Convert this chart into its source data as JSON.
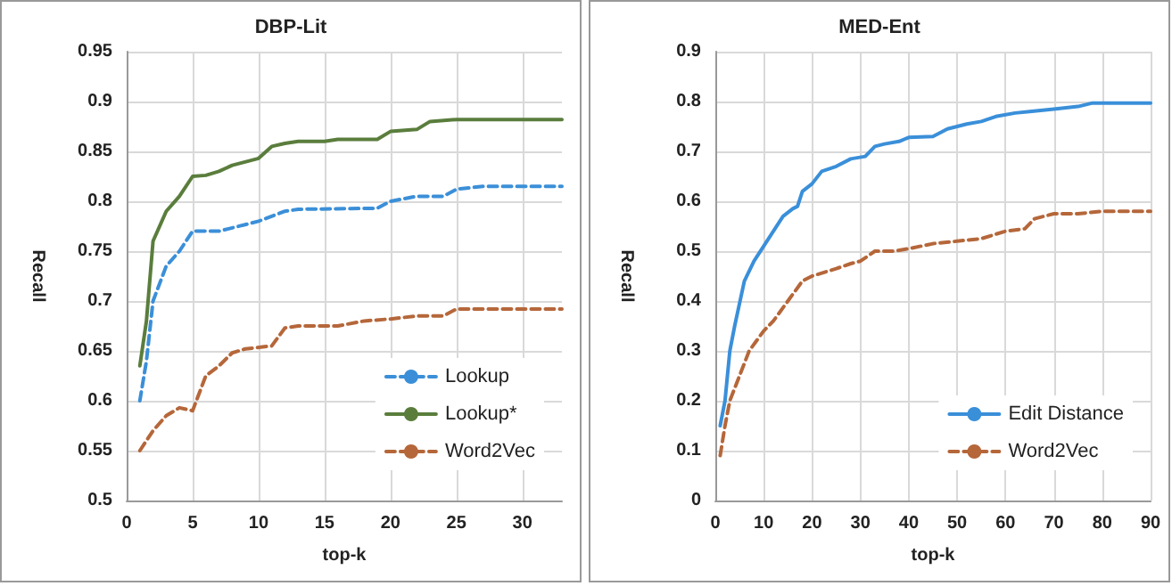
{
  "chart_data": [
    {
      "type": "line",
      "title": "DBP-Lit",
      "xlabel": "top-k",
      "ylabel": "Recall",
      "xlim": [
        0,
        33
      ],
      "xticks": [
        0,
        5,
        10,
        15,
        20,
        25,
        30
      ],
      "ylim": [
        0.5,
        0.95
      ],
      "yticks": [
        0.5,
        0.55,
        0.6,
        0.65,
        0.7,
        0.75,
        0.8,
        0.85,
        0.9,
        0.95
      ],
      "grid": true,
      "legend": "bottom right",
      "marker": "none",
      "series": [
        {
          "name": "Lookup",
          "color": "#3b8fd8",
          "line_style": "dashed",
          "x": [
            1,
            1.5,
            2,
            3,
            4,
            5,
            7,
            10,
            12,
            13,
            19,
            20,
            22,
            24,
            25,
            27,
            33
          ],
          "values": [
            0.6,
            0.64,
            0.7,
            0.735,
            0.75,
            0.77,
            0.77,
            0.78,
            0.79,
            0.792,
            0.793,
            0.8,
            0.805,
            0.805,
            0.812,
            0.815,
            0.815
          ]
        },
        {
          "name": "Lookup*",
          "color": "#5a7d3c",
          "line_style": "solid",
          "x": [
            1,
            1.5,
            2,
            3,
            4,
            5,
            6,
            7,
            8,
            10,
            11,
            12,
            13,
            15,
            16,
            19,
            20,
            22,
            23,
            25,
            33
          ],
          "values": [
            0.635,
            0.68,
            0.76,
            0.79,
            0.805,
            0.825,
            0.826,
            0.83,
            0.836,
            0.843,
            0.855,
            0.858,
            0.86,
            0.86,
            0.862,
            0.862,
            0.87,
            0.872,
            0.88,
            0.882,
            0.882
          ]
        },
        {
          "name": "Word2Vec",
          "color": "#b5673a",
          "line_style": "dashed",
          "x": [
            1,
            2,
            3,
            4,
            5,
            6,
            7,
            8,
            9,
            11,
            12,
            13,
            16,
            18,
            20,
            22,
            24,
            25,
            33
          ],
          "values": [
            0.55,
            0.57,
            0.585,
            0.593,
            0.59,
            0.625,
            0.635,
            0.648,
            0.652,
            0.655,
            0.673,
            0.675,
            0.675,
            0.68,
            0.682,
            0.685,
            0.685,
            0.692,
            0.692
          ]
        }
      ]
    },
    {
      "type": "line",
      "title": "MED-Ent",
      "xlabel": "top-k",
      "ylabel": "Recall",
      "xlim": [
        0,
        90
      ],
      "xticks": [
        0,
        10,
        20,
        30,
        40,
        50,
        60,
        70,
        80,
        90
      ],
      "ylim": [
        0,
        0.9
      ],
      "yticks": [
        0,
        0.1,
        0.2,
        0.3,
        0.4,
        0.5,
        0.6,
        0.7,
        0.8,
        0.9
      ],
      "grid": true,
      "legend": "bottom right",
      "marker": "none",
      "series": [
        {
          "name": "Edit Distance",
          "color": "#3a8fd9",
          "line_style": "solid",
          "x": [
            1,
            2,
            3,
            4,
            6,
            8,
            10,
            12,
            14,
            16,
            17,
            18,
            20,
            22,
            25,
            28,
            31,
            33,
            35,
            38,
            40,
            45,
            48,
            52,
            55,
            58,
            62,
            65,
            70,
            75,
            78,
            90
          ],
          "values": [
            0.15,
            0.2,
            0.3,
            0.35,
            0.44,
            0.48,
            0.51,
            0.54,
            0.57,
            0.585,
            0.59,
            0.62,
            0.635,
            0.66,
            0.67,
            0.685,
            0.69,
            0.71,
            0.715,
            0.72,
            0.728,
            0.73,
            0.745,
            0.755,
            0.76,
            0.77,
            0.777,
            0.78,
            0.785,
            0.79,
            0.797,
            0.797
          ]
        },
        {
          "name": "Word2Vec",
          "color": "#b5673a",
          "line_style": "dashed",
          "x": [
            1,
            2,
            3,
            5,
            7,
            10,
            12,
            15,
            18,
            20,
            25,
            28,
            30,
            33,
            37,
            40,
            45,
            50,
            55,
            60,
            64,
            66,
            70,
            75,
            80,
            90
          ],
          "values": [
            0.09,
            0.15,
            0.2,
            0.25,
            0.3,
            0.34,
            0.36,
            0.4,
            0.44,
            0.45,
            0.465,
            0.475,
            0.48,
            0.5,
            0.5,
            0.505,
            0.515,
            0.52,
            0.525,
            0.54,
            0.545,
            0.565,
            0.575,
            0.575,
            0.58,
            0.58
          ]
        }
      ]
    }
  ]
}
